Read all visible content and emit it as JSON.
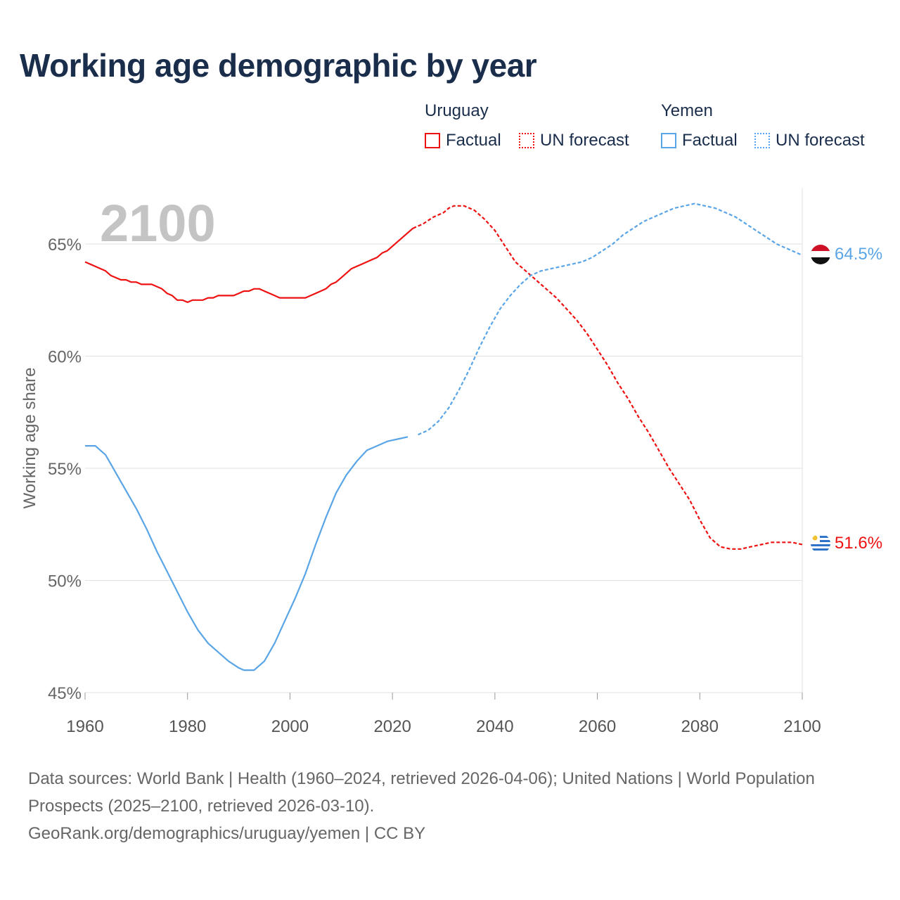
{
  "title": "Working age demographic by year",
  "year_label": "2100",
  "legend": {
    "uruguay": {
      "name": "Uruguay",
      "factual": "Factual",
      "forecast": "UN forecast",
      "color": "#ee1111"
    },
    "yemen": {
      "name": "Yemen",
      "factual": "Factual",
      "forecast": "UN forecast",
      "color": "#5aa5e6"
    }
  },
  "footer": {
    "sources": "Data sources: World Bank | Health (1960–2024, retrieved 2026-04-06); United Nations | World Population Prospects (2025–2100, retrieved 2026-03-10).",
    "link": "GeoRank.org/demographics/uruguay/yemen | CC BY"
  },
  "chart_data": {
    "type": "line",
    "title": "Working age demographic by year",
    "ylabel": "Working age share",
    "xlabel": "",
    "xlim": [
      1960,
      2100
    ],
    "ylim": [
      45,
      67.5
    ],
    "x_ticks": [
      "1960",
      "1980",
      "2000",
      "2020",
      "2040",
      "2060",
      "2080",
      "2100"
    ],
    "x_tick_values": [
      1960,
      1980,
      2000,
      2020,
      2040,
      2060,
      2080,
      2100
    ],
    "y_ticks": [
      "45%",
      "50%",
      "55%",
      "60%",
      "65%"
    ],
    "y_tick_values": [
      45,
      50,
      55,
      60,
      65
    ],
    "grid": true,
    "factual_end_year": 2024,
    "end_labels": {
      "uruguay": "51.6%",
      "yemen": "64.5%"
    },
    "series": [
      {
        "name": "Uruguay",
        "color": "#ee1111",
        "points": [
          [
            1960,
            64.2
          ],
          [
            1962,
            64.0
          ],
          [
            1964,
            63.8
          ],
          [
            1965,
            63.6
          ],
          [
            1967,
            63.4
          ],
          [
            1968,
            63.4
          ],
          [
            1969,
            63.3
          ],
          [
            1970,
            63.3
          ],
          [
            1971,
            63.2
          ],
          [
            1973,
            63.2
          ],
          [
            1975,
            63.0
          ],
          [
            1976,
            62.8
          ],
          [
            1977,
            62.7
          ],
          [
            1978,
            62.5
          ],
          [
            1979,
            62.5
          ],
          [
            1980,
            62.4
          ],
          [
            1981,
            62.5
          ],
          [
            1983,
            62.5
          ],
          [
            1984,
            62.6
          ],
          [
            1985,
            62.6
          ],
          [
            1986,
            62.7
          ],
          [
            1989,
            62.7
          ],
          [
            1990,
            62.8
          ],
          [
            1991,
            62.9
          ],
          [
            1992,
            62.9
          ],
          [
            1993,
            63.0
          ],
          [
            1994,
            63.0
          ],
          [
            1995,
            62.9
          ],
          [
            1997,
            62.7
          ],
          [
            1998,
            62.6
          ],
          [
            2003,
            62.6
          ],
          [
            2005,
            62.8
          ],
          [
            2007,
            63.0
          ],
          [
            2008,
            63.2
          ],
          [
            2009,
            63.3
          ],
          [
            2010,
            63.5
          ],
          [
            2012,
            63.9
          ],
          [
            2014,
            64.1
          ],
          [
            2016,
            64.3
          ],
          [
            2017,
            64.4
          ],
          [
            2018,
            64.6
          ],
          [
            2019,
            64.7
          ],
          [
            2020,
            64.9
          ],
          [
            2022,
            65.3
          ],
          [
            2024,
            65.7
          ],
          [
            2026,
            65.9
          ],
          [
            2028,
            66.2
          ],
          [
            2030,
            66.4
          ],
          [
            2031,
            66.6
          ],
          [
            2032,
            66.7
          ],
          [
            2034,
            66.7
          ],
          [
            2036,
            66.5
          ],
          [
            2038,
            66.1
          ],
          [
            2040,
            65.6
          ],
          [
            2042,
            64.9
          ],
          [
            2044,
            64.2
          ],
          [
            2046,
            63.8
          ],
          [
            2048,
            63.4
          ],
          [
            2050,
            63.0
          ],
          [
            2052,
            62.6
          ],
          [
            2054,
            62.1
          ],
          [
            2056,
            61.6
          ],
          [
            2058,
            61.0
          ],
          [
            2060,
            60.3
          ],
          [
            2062,
            59.6
          ],
          [
            2064,
            58.8
          ],
          [
            2066,
            58.1
          ],
          [
            2068,
            57.3
          ],
          [
            2070,
            56.6
          ],
          [
            2072,
            55.8
          ],
          [
            2074,
            55.0
          ],
          [
            2076,
            54.3
          ],
          [
            2078,
            53.6
          ],
          [
            2080,
            52.7
          ],
          [
            2082,
            51.9
          ],
          [
            2084,
            51.5
          ],
          [
            2086,
            51.4
          ],
          [
            2088,
            51.4
          ],
          [
            2090,
            51.5
          ],
          [
            2092,
            51.6
          ],
          [
            2094,
            51.7
          ],
          [
            2096,
            51.7
          ],
          [
            2098,
            51.7
          ],
          [
            2100,
            51.6
          ]
        ]
      },
      {
        "name": "Yemen",
        "color": "#5aa5e6",
        "points": [
          [
            1960,
            56.0
          ],
          [
            1962,
            56.0
          ],
          [
            1964,
            55.6
          ],
          [
            1965,
            55.2
          ],
          [
            1966,
            54.8
          ],
          [
            1968,
            54.0
          ],
          [
            1970,
            53.2
          ],
          [
            1972,
            52.3
          ],
          [
            1974,
            51.3
          ],
          [
            1976,
            50.4
          ],
          [
            1978,
            49.5
          ],
          [
            1980,
            48.6
          ],
          [
            1982,
            47.8
          ],
          [
            1984,
            47.2
          ],
          [
            1986,
            46.8
          ],
          [
            1988,
            46.4
          ],
          [
            1990,
            46.1
          ],
          [
            1991,
            46.0
          ],
          [
            1993,
            46.0
          ],
          [
            1995,
            46.4
          ],
          [
            1997,
            47.2
          ],
          [
            1999,
            48.2
          ],
          [
            2001,
            49.2
          ],
          [
            2003,
            50.3
          ],
          [
            2005,
            51.6
          ],
          [
            2007,
            52.8
          ],
          [
            2009,
            53.9
          ],
          [
            2011,
            54.7
          ],
          [
            2013,
            55.3
          ],
          [
            2015,
            55.8
          ],
          [
            2017,
            56.0
          ],
          [
            2019,
            56.2
          ],
          [
            2021,
            56.3
          ],
          [
            2023,
            56.4
          ],
          [
            2025,
            56.5
          ],
          [
            2027,
            56.7
          ],
          [
            2029,
            57.1
          ],
          [
            2031,
            57.7
          ],
          [
            2033,
            58.5
          ],
          [
            2035,
            59.4
          ],
          [
            2037,
            60.4
          ],
          [
            2039,
            61.3
          ],
          [
            2041,
            62.1
          ],
          [
            2043,
            62.7
          ],
          [
            2045,
            63.2
          ],
          [
            2047,
            63.6
          ],
          [
            2049,
            63.8
          ],
          [
            2051,
            63.9
          ],
          [
            2053,
            64.0
          ],
          [
            2055,
            64.1
          ],
          [
            2057,
            64.2
          ],
          [
            2059,
            64.4
          ],
          [
            2061,
            64.7
          ],
          [
            2063,
            65.0
          ],
          [
            2065,
            65.4
          ],
          [
            2067,
            65.7
          ],
          [
            2069,
            66.0
          ],
          [
            2071,
            66.2
          ],
          [
            2073,
            66.4
          ],
          [
            2075,
            66.6
          ],
          [
            2077,
            66.7
          ],
          [
            2079,
            66.8
          ],
          [
            2081,
            66.7
          ],
          [
            2083,
            66.6
          ],
          [
            2085,
            66.4
          ],
          [
            2087,
            66.2
          ],
          [
            2089,
            65.9
          ],
          [
            2091,
            65.6
          ],
          [
            2093,
            65.3
          ],
          [
            2095,
            65.0
          ],
          [
            2097,
            64.8
          ],
          [
            2099,
            64.6
          ],
          [
            2100,
            64.5
          ]
        ]
      }
    ]
  }
}
